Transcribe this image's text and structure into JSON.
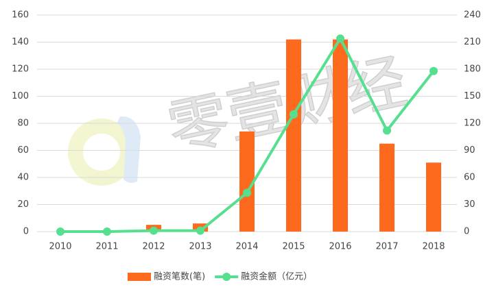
{
  "chart_data": {
    "type": "bar-line",
    "watermark": "零壹财经",
    "categories": [
      "2010",
      "2011",
      "2012",
      "2013",
      "2014",
      "2015",
      "2016",
      "2017",
      "2018"
    ],
    "series": [
      {
        "name": "融资笔数(笔)",
        "type": "bar",
        "color": "#fd6a1e",
        "values": [
          0,
          1,
          5,
          6,
          74,
          142,
          142,
          65,
          51
        ]
      },
      {
        "name": "融资金额（亿元）",
        "type": "line",
        "axis": "y2",
        "color": "#55df8f",
        "values": [
          0,
          0,
          1,
          1,
          43,
          130,
          214,
          112,
          178
        ]
      }
    ],
    "ylim": [
      0,
      160
    ],
    "yticks": [
      0,
      20,
      40,
      60,
      80,
      100,
      120,
      140,
      160
    ],
    "y2lim": [
      0,
      240
    ],
    "y2ticks": [
      0,
      30,
      60,
      90,
      120,
      150,
      180,
      210,
      240
    ],
    "grid": true,
    "legend": "bottom"
  }
}
